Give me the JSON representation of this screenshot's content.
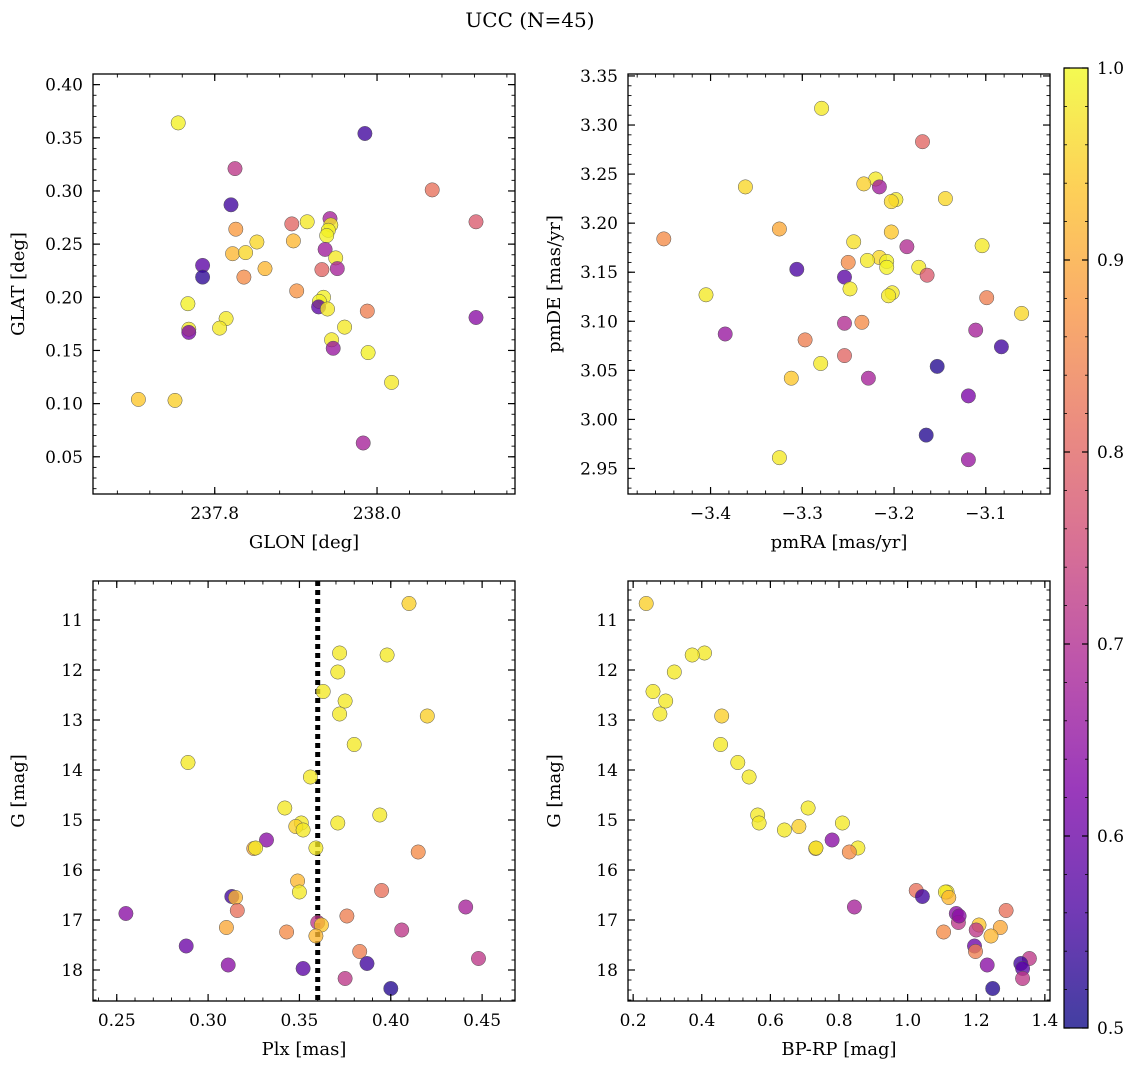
{
  "title": "UCC (N=45)",
  "colorbar": {
    "min": 0.5,
    "max": 1.0,
    "ticks": [
      "0.5",
      "0.6",
      "0.7",
      "0.8",
      "0.9",
      "1.0"
    ],
    "colormap": "plasma"
  },
  "chart_data": [
    {
      "type": "scatter",
      "name": "sky",
      "xlabel": "GLON [deg]",
      "ylabel": "GLAT [deg]",
      "xlim": [
        237.65,
        238.17
      ],
      "ylim": [
        0.015,
        0.41
      ],
      "xticks": [
        237.8,
        238.0
      ],
      "xtick_labels": [
        "237.8",
        "238.0"
      ],
      "yticks": [
        0.05,
        0.1,
        0.15,
        0.2,
        0.25,
        0.3,
        0.35,
        0.4
      ],
      "ytick_labels": [
        "0.05",
        "0.10",
        "0.15",
        "0.20",
        "0.25",
        "0.30",
        "0.35",
        "0.40"
      ],
      "points": [
        {
          "x": 237.755,
          "y": 0.364,
          "c": 0.99
        },
        {
          "x": 237.985,
          "y": 0.354,
          "c": 0.55
        },
        {
          "x": 237.825,
          "y": 0.321,
          "c": 0.72
        },
        {
          "x": 238.068,
          "y": 0.301,
          "c": 0.82
        },
        {
          "x": 237.82,
          "y": 0.287,
          "c": 0.55
        },
        {
          "x": 237.914,
          "y": 0.271,
          "c": 0.98
        },
        {
          "x": 238.122,
          "y": 0.271,
          "c": 0.78
        },
        {
          "x": 237.942,
          "y": 0.274,
          "c": 0.68
        },
        {
          "x": 237.895,
          "y": 0.269,
          "c": 0.8
        },
        {
          "x": 237.826,
          "y": 0.264,
          "c": 0.88
        },
        {
          "x": 237.943,
          "y": 0.268,
          "c": 0.98
        },
        {
          "x": 237.94,
          "y": 0.263,
          "c": 0.99
        },
        {
          "x": 237.938,
          "y": 0.258,
          "c": 0.99
        },
        {
          "x": 237.897,
          "y": 0.253,
          "c": 0.92
        },
        {
          "x": 237.852,
          "y": 0.252,
          "c": 0.96
        },
        {
          "x": 237.936,
          "y": 0.245,
          "c": 0.67
        },
        {
          "x": 237.822,
          "y": 0.241,
          "c": 0.92
        },
        {
          "x": 237.838,
          "y": 0.242,
          "c": 0.96
        },
        {
          "x": 237.949,
          "y": 0.237,
          "c": 0.98
        },
        {
          "x": 237.785,
          "y": 0.23,
          "c": 0.58
        },
        {
          "x": 237.951,
          "y": 0.227,
          "c": 0.68
        },
        {
          "x": 237.932,
          "y": 0.226,
          "c": 0.8
        },
        {
          "x": 237.862,
          "y": 0.227,
          "c": 0.92
        },
        {
          "x": 237.836,
          "y": 0.219,
          "c": 0.86
        },
        {
          "x": 237.785,
          "y": 0.219,
          "c": 0.53
        },
        {
          "x": 237.901,
          "y": 0.206,
          "c": 0.87
        },
        {
          "x": 237.934,
          "y": 0.2,
          "c": 0.99
        },
        {
          "x": 237.929,
          "y": 0.196,
          "c": 0.99
        },
        {
          "x": 237.928,
          "y": 0.191,
          "c": 0.58
        },
        {
          "x": 237.767,
          "y": 0.194,
          "c": 0.99
        },
        {
          "x": 237.939,
          "y": 0.189,
          "c": 0.98
        },
        {
          "x": 237.988,
          "y": 0.187,
          "c": 0.84
        },
        {
          "x": 238.122,
          "y": 0.181,
          "c": 0.64
        },
        {
          "x": 237.814,
          "y": 0.18,
          "c": 0.98
        },
        {
          "x": 237.768,
          "y": 0.17,
          "c": 0.98
        },
        {
          "x": 237.806,
          "y": 0.171,
          "c": 0.98
        },
        {
          "x": 237.96,
          "y": 0.172,
          "c": 0.98
        },
        {
          "x": 237.768,
          "y": 0.167,
          "c": 0.62
        },
        {
          "x": 237.944,
          "y": 0.16,
          "c": 0.98
        },
        {
          "x": 237.946,
          "y": 0.152,
          "c": 0.66
        },
        {
          "x": 237.989,
          "y": 0.148,
          "c": 0.99
        },
        {
          "x": 238.018,
          "y": 0.12,
          "c": 0.98
        },
        {
          "x": 237.706,
          "y": 0.104,
          "c": 0.94
        },
        {
          "x": 237.751,
          "y": 0.103,
          "c": 0.95
        },
        {
          "x": 237.983,
          "y": 0.063,
          "c": 0.68
        }
      ]
    },
    {
      "type": "scatter",
      "name": "proper-motion",
      "xlabel": "pmRA [mas/yr]",
      "ylabel": "pmDE [mas/yr]",
      "xlim": [
        -3.49,
        -3.03
      ],
      "ylim": [
        2.924,
        3.352
      ],
      "xticks": [
        -3.4,
        -3.3,
        -3.2,
        -3.1
      ],
      "xtick_labels": [
        "−3.4",
        "−3.3",
        "−3.2",
        "−3.1"
      ],
      "yticks": [
        2.95,
        3.0,
        3.05,
        3.1,
        3.15,
        3.2,
        3.25,
        3.3,
        3.35
      ],
      "ytick_labels": [
        "2.95",
        "3.00",
        "3.05",
        "3.10",
        "3.15",
        "3.20",
        "3.25",
        "3.30",
        "3.35"
      ],
      "points": [
        {
          "x": -3.279,
          "y": 3.317,
          "c": 0.98
        },
        {
          "x": -3.169,
          "y": 3.283,
          "c": 0.8
        },
        {
          "x": -3.22,
          "y": 3.245,
          "c": 0.98
        },
        {
          "x": -3.233,
          "y": 3.24,
          "c": 0.95
        },
        {
          "x": -3.216,
          "y": 3.237,
          "c": 0.67
        },
        {
          "x": -3.362,
          "y": 3.237,
          "c": 0.96
        },
        {
          "x": -3.144,
          "y": 3.225,
          "c": 0.96
        },
        {
          "x": -3.198,
          "y": 3.224,
          "c": 0.98
        },
        {
          "x": -3.203,
          "y": 3.222,
          "c": 0.96
        },
        {
          "x": -3.325,
          "y": 3.194,
          "c": 0.9
        },
        {
          "x": -3.203,
          "y": 3.191,
          "c": 0.94
        },
        {
          "x": -3.451,
          "y": 3.184,
          "c": 0.86
        },
        {
          "x": -3.244,
          "y": 3.181,
          "c": 0.97
        },
        {
          "x": -3.104,
          "y": 3.177,
          "c": 0.98
        },
        {
          "x": -3.186,
          "y": 3.176,
          "c": 0.7
        },
        {
          "x": -3.216,
          "y": 3.165,
          "c": 0.96
        },
        {
          "x": -3.229,
          "y": 3.162,
          "c": 0.98
        },
        {
          "x": -3.208,
          "y": 3.161,
          "c": 0.99
        },
        {
          "x": -3.25,
          "y": 3.16,
          "c": 0.86
        },
        {
          "x": -3.208,
          "y": 3.155,
          "c": 0.99
        },
        {
          "x": -3.173,
          "y": 3.155,
          "c": 0.98
        },
        {
          "x": -3.306,
          "y": 3.153,
          "c": 0.56
        },
        {
          "x": -3.164,
          "y": 3.147,
          "c": 0.78
        },
        {
          "x": -3.254,
          "y": 3.145,
          "c": 0.58
        },
        {
          "x": -3.248,
          "y": 3.133,
          "c": 0.98
        },
        {
          "x": -3.202,
          "y": 3.129,
          "c": 0.98
        },
        {
          "x": -3.405,
          "y": 3.127,
          "c": 0.98
        },
        {
          "x": -3.206,
          "y": 3.126,
          "c": 0.98
        },
        {
          "x": -3.099,
          "y": 3.124,
          "c": 0.84
        },
        {
          "x": -3.061,
          "y": 3.108,
          "c": 0.96
        },
        {
          "x": -3.235,
          "y": 3.099,
          "c": 0.86
        },
        {
          "x": -3.254,
          "y": 3.098,
          "c": 0.7
        },
        {
          "x": -3.111,
          "y": 3.091,
          "c": 0.68
        },
        {
          "x": -3.384,
          "y": 3.087,
          "c": 0.66
        },
        {
          "x": -3.297,
          "y": 3.081,
          "c": 0.84
        },
        {
          "x": -3.083,
          "y": 3.074,
          "c": 0.55
        },
        {
          "x": -3.254,
          "y": 3.065,
          "c": 0.8
        },
        {
          "x": -3.28,
          "y": 3.057,
          "c": 0.98
        },
        {
          "x": -3.153,
          "y": 3.054,
          "c": 0.52
        },
        {
          "x": -3.228,
          "y": 3.042,
          "c": 0.68
        },
        {
          "x": -3.312,
          "y": 3.042,
          "c": 0.94
        },
        {
          "x": -3.119,
          "y": 3.024,
          "c": 0.62
        },
        {
          "x": -3.165,
          "y": 2.984,
          "c": 0.52
        },
        {
          "x": -3.325,
          "y": 2.961,
          "c": 0.98
        },
        {
          "x": -3.119,
          "y": 2.959,
          "c": 0.66
        }
      ]
    },
    {
      "type": "scatter",
      "name": "parallax",
      "xlabel": "Plx [mas]",
      "ylabel": "G [mag]",
      "xlim": [
        0.237,
        0.468
      ],
      "ylim": [
        18.62,
        10.22
      ],
      "y_inverted": true,
      "vline": 0.36,
      "xticks": [
        0.25,
        0.3,
        0.35,
        0.4,
        0.45
      ],
      "xtick_labels": [
        "0.25",
        "0.30",
        "0.35",
        "0.40",
        "0.45"
      ],
      "yticks": [
        11,
        12,
        13,
        14,
        15,
        16,
        17,
        18
      ],
      "ytick_labels": [
        "11",
        "12",
        "13",
        "14",
        "15",
        "16",
        "17",
        "18"
      ],
      "points": [
        {
          "x": 0.41,
          "y": 10.67,
          "c": 0.95
        },
        {
          "x": 0.372,
          "y": 11.66,
          "c": 0.98
        },
        {
          "x": 0.398,
          "y": 11.7,
          "c": 0.98
        },
        {
          "x": 0.371,
          "y": 12.04,
          "c": 0.98
        },
        {
          "x": 0.363,
          "y": 12.43,
          "c": 0.98
        },
        {
          "x": 0.375,
          "y": 12.62,
          "c": 0.98
        },
        {
          "x": 0.372,
          "y": 12.88,
          "c": 0.98
        },
        {
          "x": 0.42,
          "y": 12.92,
          "c": 0.95
        },
        {
          "x": 0.38,
          "y": 13.49,
          "c": 0.98
        },
        {
          "x": 0.289,
          "y": 13.85,
          "c": 0.98
        },
        {
          "x": 0.356,
          "y": 14.14,
          "c": 0.98
        },
        {
          "x": 0.342,
          "y": 14.76,
          "c": 0.98
        },
        {
          "x": 0.394,
          "y": 14.9,
          "c": 0.98
        },
        {
          "x": 0.371,
          "y": 15.06,
          "c": 0.98
        },
        {
          "x": 0.351,
          "y": 15.06,
          "c": 0.98
        },
        {
          "x": 0.348,
          "y": 15.13,
          "c": 0.95
        },
        {
          "x": 0.352,
          "y": 15.2,
          "c": 0.98
        },
        {
          "x": 0.332,
          "y": 15.4,
          "c": 0.64
        },
        {
          "x": 0.325,
          "y": 15.57,
          "c": 0.9
        },
        {
          "x": 0.326,
          "y": 15.56,
          "c": 0.98
        },
        {
          "x": 0.359,
          "y": 15.56,
          "c": 0.98
        },
        {
          "x": 0.415,
          "y": 15.64,
          "c": 0.86
        },
        {
          "x": 0.349,
          "y": 16.22,
          "c": 0.92
        },
        {
          "x": 0.395,
          "y": 16.41,
          "c": 0.82
        },
        {
          "x": 0.35,
          "y": 16.44,
          "c": 0.98
        },
        {
          "x": 0.313,
          "y": 16.53,
          "c": 0.55
        },
        {
          "x": 0.315,
          "y": 16.55,
          "c": 0.92
        },
        {
          "x": 0.316,
          "y": 16.81,
          "c": 0.82
        },
        {
          "x": 0.441,
          "y": 16.74,
          "c": 0.68
        },
        {
          "x": 0.255,
          "y": 16.87,
          "c": 0.64
        },
        {
          "x": 0.376,
          "y": 16.92,
          "c": 0.84
        },
        {
          "x": 0.36,
          "y": 17.05,
          "c": 0.72
        },
        {
          "x": 0.362,
          "y": 17.1,
          "c": 0.94
        },
        {
          "x": 0.31,
          "y": 17.15,
          "c": 0.9
        },
        {
          "x": 0.406,
          "y": 17.2,
          "c": 0.72
        },
        {
          "x": 0.343,
          "y": 17.24,
          "c": 0.86
        },
        {
          "x": 0.359,
          "y": 17.32,
          "c": 0.92
        },
        {
          "x": 0.288,
          "y": 17.52,
          "c": 0.6
        },
        {
          "x": 0.383,
          "y": 17.63,
          "c": 0.84
        },
        {
          "x": 0.448,
          "y": 17.77,
          "c": 0.72
        },
        {
          "x": 0.387,
          "y": 17.87,
          "c": 0.55
        },
        {
          "x": 0.311,
          "y": 17.9,
          "c": 0.64
        },
        {
          "x": 0.352,
          "y": 17.97,
          "c": 0.58
        },
        {
          "x": 0.375,
          "y": 18.17,
          "c": 0.72
        },
        {
          "x": 0.4,
          "y": 18.37,
          "c": 0.52
        }
      ]
    },
    {
      "type": "scatter",
      "name": "cmd",
      "xlabel": "BP-RP [mag]",
      "ylabel": "G [mag]",
      "xlim": [
        0.185,
        1.415
      ],
      "ylim": [
        18.62,
        10.22
      ],
      "y_inverted": true,
      "xticks": [
        0.2,
        0.4,
        0.6,
        0.8,
        1.0,
        1.2,
        1.4
      ],
      "xtick_labels": [
        "0.2",
        "0.4",
        "0.6",
        "0.8",
        "1.0",
        "1.2",
        "1.4"
      ],
      "yticks": [
        11,
        12,
        13,
        14,
        15,
        16,
        17,
        18
      ],
      "ytick_labels": [
        "11",
        "12",
        "13",
        "14",
        "15",
        "16",
        "17",
        "18"
      ],
      "points": [
        {
          "x": 0.238,
          "y": 10.67,
          "c": 0.95
        },
        {
          "x": 0.408,
          "y": 11.66,
          "c": 0.98
        },
        {
          "x": 0.372,
          "y": 11.7,
          "c": 0.98
        },
        {
          "x": 0.32,
          "y": 12.04,
          "c": 0.98
        },
        {
          "x": 0.258,
          "y": 12.43,
          "c": 0.98
        },
        {
          "x": 0.295,
          "y": 12.62,
          "c": 0.98
        },
        {
          "x": 0.278,
          "y": 12.88,
          "c": 0.98
        },
        {
          "x": 0.458,
          "y": 12.92,
          "c": 0.95
        },
        {
          "x": 0.455,
          "y": 13.49,
          "c": 0.98
        },
        {
          "x": 0.505,
          "y": 13.85,
          "c": 0.98
        },
        {
          "x": 0.538,
          "y": 14.14,
          "c": 0.98
        },
        {
          "x": 0.71,
          "y": 14.76,
          "c": 0.98
        },
        {
          "x": 0.563,
          "y": 14.9,
          "c": 0.98
        },
        {
          "x": 0.81,
          "y": 15.06,
          "c": 0.98
        },
        {
          "x": 0.567,
          "y": 15.06,
          "c": 0.98
        },
        {
          "x": 0.683,
          "y": 15.13,
          "c": 0.95
        },
        {
          "x": 0.641,
          "y": 15.2,
          "c": 0.98
        },
        {
          "x": 0.78,
          "y": 15.4,
          "c": 0.64
        },
        {
          "x": 0.732,
          "y": 15.57,
          "c": 0.9
        },
        {
          "x": 0.733,
          "y": 15.56,
          "c": 0.98
        },
        {
          "x": 0.855,
          "y": 15.56,
          "c": 0.98
        },
        {
          "x": 0.83,
          "y": 15.64,
          "c": 0.86
        },
        {
          "x": 1.115,
          "y": 16.44,
          "c": 0.98
        },
        {
          "x": 1.025,
          "y": 16.41,
          "c": 0.82
        },
        {
          "x": 1.11,
          "y": 16.44,
          "c": 0.98
        },
        {
          "x": 1.043,
          "y": 16.53,
          "c": 0.55
        },
        {
          "x": 1.12,
          "y": 16.55,
          "c": 0.92
        },
        {
          "x": 1.287,
          "y": 16.81,
          "c": 0.82
        },
        {
          "x": 0.845,
          "y": 16.74,
          "c": 0.68
        },
        {
          "x": 1.142,
          "y": 16.87,
          "c": 0.64
        },
        {
          "x": 1.148,
          "y": 17.05,
          "c": 0.72
        },
        {
          "x": 1.208,
          "y": 17.1,
          "c": 0.94
        },
        {
          "x": 1.27,
          "y": 17.15,
          "c": 0.9
        },
        {
          "x": 1.2,
          "y": 17.2,
          "c": 0.72
        },
        {
          "x": 1.105,
          "y": 17.24,
          "c": 0.86
        },
        {
          "x": 1.243,
          "y": 17.32,
          "c": 0.92
        },
        {
          "x": 1.195,
          "y": 17.52,
          "c": 0.6
        },
        {
          "x": 1.198,
          "y": 17.63,
          "c": 0.84
        },
        {
          "x": 1.355,
          "y": 17.77,
          "c": 0.72
        },
        {
          "x": 1.33,
          "y": 17.87,
          "c": 0.55
        },
        {
          "x": 1.232,
          "y": 17.9,
          "c": 0.64
        },
        {
          "x": 1.335,
          "y": 17.97,
          "c": 0.58
        },
        {
          "x": 1.335,
          "y": 18.17,
          "c": 0.72
        },
        {
          "x": 1.248,
          "y": 18.37,
          "c": 0.52
        },
        {
          "x": 1.15,
          "y": 16.92,
          "c": 0.64
        }
      ]
    }
  ]
}
